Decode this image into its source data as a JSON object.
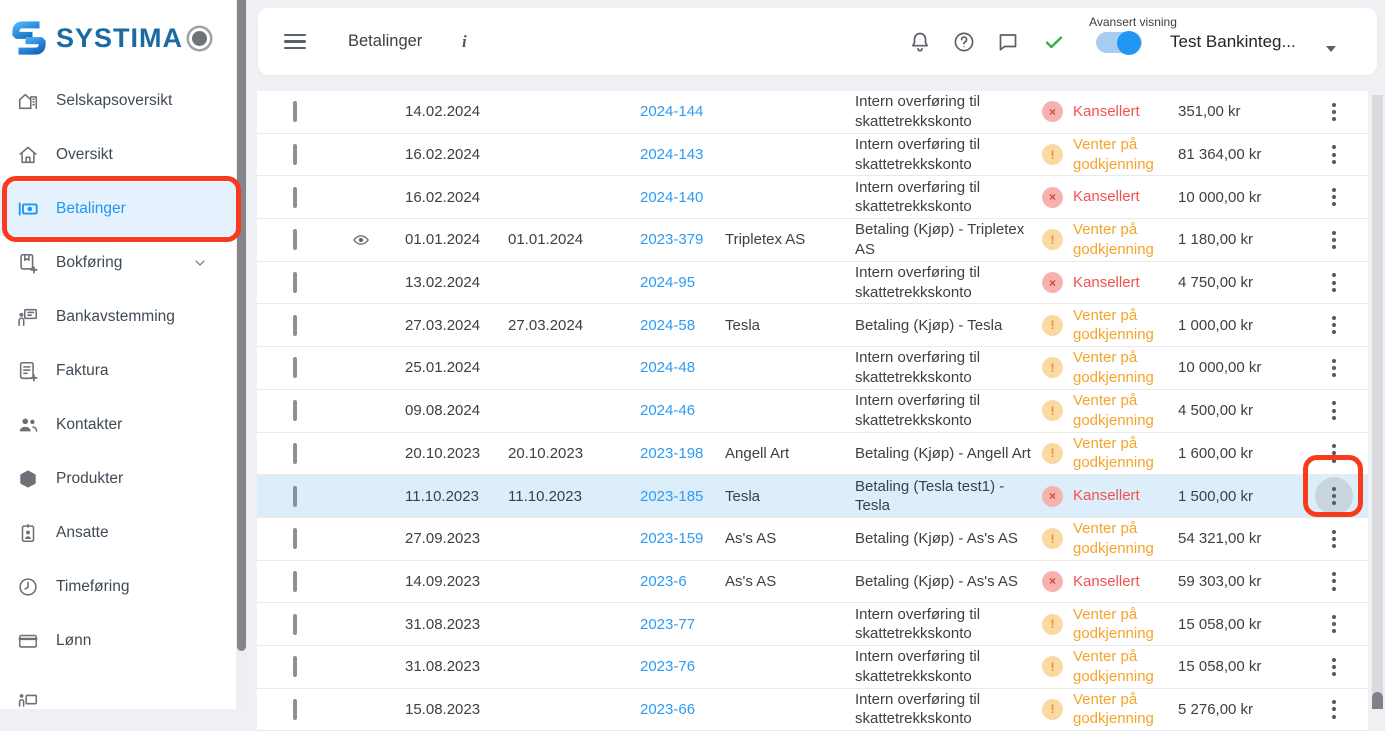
{
  "brand": {
    "name": "SYSTIMA"
  },
  "colors": {
    "accent_blue": "#2196f3",
    "active_item_bg": "#e5f2fd",
    "link_blue": "#2e9bf0",
    "cancelled_red": "#ef5350",
    "pending_orange": "#f6a329",
    "highlight_row_blue": "#ddeefb",
    "annotation_red": "#f93b1d",
    "check_green": "#3fa94b"
  },
  "sidebar": {
    "items": [
      {
        "label": "Selskapsoversikt",
        "icon": "company-overview-icon",
        "active": false,
        "chevron": false
      },
      {
        "label": "Oversikt",
        "icon": "home-icon",
        "active": false,
        "chevron": false
      },
      {
        "label": "Betalinger",
        "icon": "payments-icon",
        "active": true,
        "chevron": false
      },
      {
        "label": "Bokføring",
        "icon": "bookkeeping-icon",
        "active": false,
        "chevron": true
      },
      {
        "label": "Bankavstemming",
        "icon": "bank-reconciliation-icon",
        "active": false,
        "chevron": false
      },
      {
        "label": "Faktura",
        "icon": "invoice-icon",
        "active": false,
        "chevron": false
      },
      {
        "label": "Kontakter",
        "icon": "contacts-icon",
        "active": false,
        "chevron": false
      },
      {
        "label": "Produkter",
        "icon": "products-icon",
        "active": false,
        "chevron": false
      },
      {
        "label": "Ansatte",
        "icon": "employees-icon",
        "active": false,
        "chevron": false
      },
      {
        "label": "Timeføring",
        "icon": "time-tracking-icon",
        "active": false,
        "chevron": false
      },
      {
        "label": "Lønn",
        "icon": "payroll-icon",
        "active": false,
        "chevron": false
      },
      {
        "label": "",
        "icon": "reports-icon",
        "active": false,
        "chevron": false
      }
    ]
  },
  "topbar": {
    "title": "Betalinger",
    "info_icon": "i",
    "advanced_view_label": "Avansert visning",
    "advanced_view_on": true,
    "account_selector": "Test Bankinteg..."
  },
  "statuses": {
    "cancelled": {
      "label": "Kansellert",
      "symbol": "×"
    },
    "pending": {
      "label": "Venter på godkjenning",
      "symbol": "!"
    }
  },
  "table": {
    "rows": [
      {
        "eye": false,
        "date": "14.02.2024",
        "paid_date": "",
        "ref": "2024-144",
        "recipient": "",
        "description": "Intern overføring til skattetrekkskonto",
        "status": "cancelled",
        "amount": "351,00 kr",
        "highlighted": false
      },
      {
        "eye": false,
        "date": "16.02.2024",
        "paid_date": "",
        "ref": "2024-143",
        "recipient": "",
        "description": "Intern overføring til skattetrekkskonto",
        "status": "pending",
        "amount": "81 364,00 kr",
        "highlighted": false
      },
      {
        "eye": false,
        "date": "16.02.2024",
        "paid_date": "",
        "ref": "2024-140",
        "recipient": "",
        "description": "Intern overføring til skattetrekkskonto",
        "status": "cancelled",
        "amount": "10 000,00 kr",
        "highlighted": false
      },
      {
        "eye": true,
        "date": "01.01.2024",
        "paid_date": "01.01.2024",
        "ref": "2023-379",
        "recipient": "Tripletex AS",
        "description": "Betaling (Kjøp) - Tripletex AS",
        "status": "pending",
        "amount": "1 180,00 kr",
        "highlighted": false
      },
      {
        "eye": false,
        "date": "13.02.2024",
        "paid_date": "",
        "ref": "2024-95",
        "recipient": "",
        "description": "Intern overføring til skattetrekkskonto",
        "status": "cancelled",
        "amount": "4 750,00 kr",
        "highlighted": false
      },
      {
        "eye": false,
        "date": "27.03.2024",
        "paid_date": "27.03.2024",
        "ref": "2024-58",
        "recipient": "Tesla",
        "description": "Betaling (Kjøp) - Tesla",
        "status": "pending",
        "amount": "1 000,00 kr",
        "highlighted": false
      },
      {
        "eye": false,
        "date": "25.01.2024",
        "paid_date": "",
        "ref": "2024-48",
        "recipient": "",
        "description": "Intern overføring til skattetrekkskonto",
        "status": "pending",
        "amount": "10 000,00 kr",
        "highlighted": false
      },
      {
        "eye": false,
        "date": "09.08.2024",
        "paid_date": "",
        "ref": "2024-46",
        "recipient": "",
        "description": "Intern overføring til skattetrekkskonto",
        "status": "pending",
        "amount": "4 500,00 kr",
        "highlighted": false
      },
      {
        "eye": false,
        "date": "20.10.2023",
        "paid_date": "20.10.2023",
        "ref": "2023-198",
        "recipient": "Angell Art",
        "description": "Betaling (Kjøp) - Angell Art",
        "status": "pending",
        "amount": "1 600,00 kr",
        "highlighted": false
      },
      {
        "eye": false,
        "date": "11.10.2023",
        "paid_date": "11.10.2023",
        "ref": "2023-185",
        "recipient": "Tesla",
        "description": "Betaling (Tesla test1) - Tesla",
        "status": "cancelled",
        "amount": "1 500,00 kr",
        "highlighted": true
      },
      {
        "eye": false,
        "date": "27.09.2023",
        "paid_date": "",
        "ref": "2023-159",
        "recipient": "As's AS",
        "description": "Betaling (Kjøp) - As's AS",
        "status": "pending",
        "amount": "54 321,00 kr",
        "highlighted": false
      },
      {
        "eye": false,
        "date": "14.09.2023",
        "paid_date": "",
        "ref": "2023-6",
        "recipient": "As's AS",
        "description": "Betaling (Kjøp) - As's AS",
        "status": "cancelled",
        "amount": "59 303,00 kr",
        "highlighted": false
      },
      {
        "eye": false,
        "date": "31.08.2023",
        "paid_date": "",
        "ref": "2023-77",
        "recipient": "",
        "description": "Intern overføring til skattetrekkskonto",
        "status": "pending",
        "amount": "15 058,00 kr",
        "highlighted": false
      },
      {
        "eye": false,
        "date": "31.08.2023",
        "paid_date": "",
        "ref": "2023-76",
        "recipient": "",
        "description": "Intern overføring til skattetrekkskonto",
        "status": "pending",
        "amount": "15 058,00 kr",
        "highlighted": false
      },
      {
        "eye": false,
        "date": "15.08.2023",
        "paid_date": "",
        "ref": "2023-66",
        "recipient": "",
        "description": "Intern overføring til skattetrekkskonto",
        "status": "pending",
        "amount": "5 276,00 kr",
        "highlighted": false
      }
    ]
  }
}
